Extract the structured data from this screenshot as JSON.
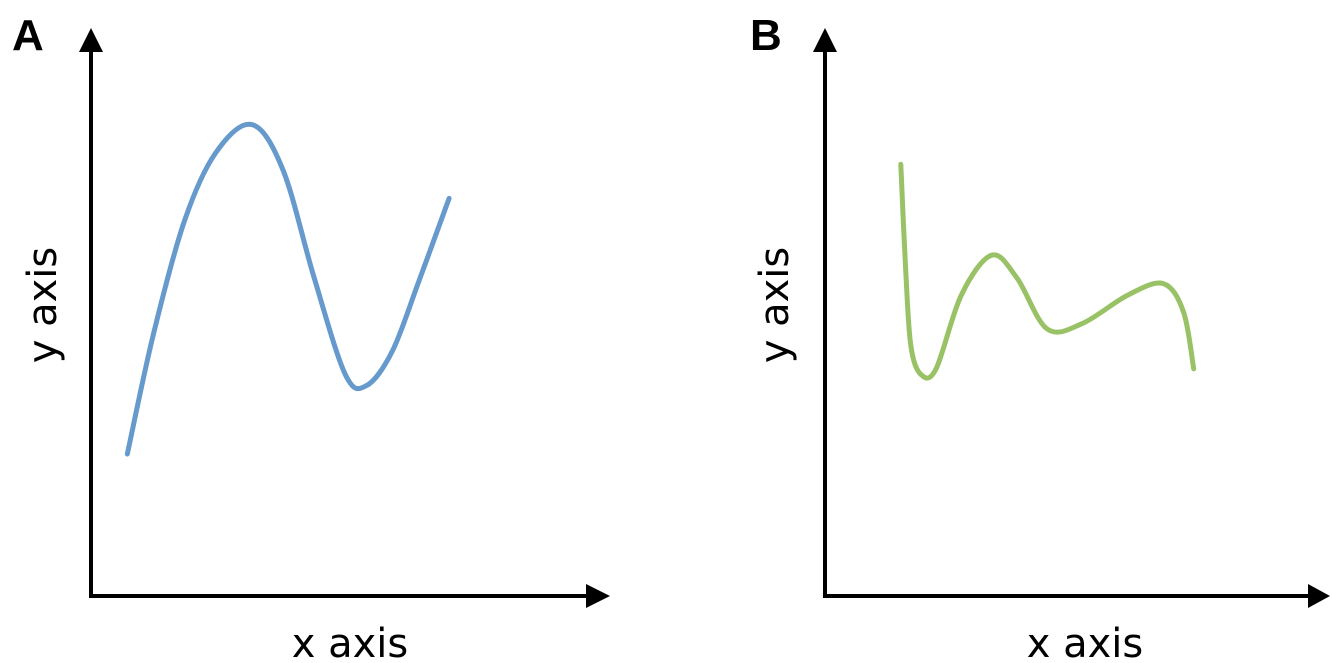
{
  "chart_data": [
    {
      "type": "line",
      "panel_label": "A",
      "xlabel": "x axis",
      "ylabel": "y axis",
      "xlim": [
        0,
        100
      ],
      "ylim": [
        0,
        100
      ],
      "grid": false,
      "series": [
        {
          "color": "#6699cc",
          "points": [
            [
              7,
              25
            ],
            [
              12,
              46
            ],
            [
              18,
              66
            ],
            [
              24,
              78
            ],
            [
              31,
              83
            ],
            [
              37,
              75
            ],
            [
              43,
              56
            ],
            [
              49,
              39
            ],
            [
              53,
              37
            ],
            [
              58,
              43
            ],
            [
              63,
              55
            ],
            [
              69,
              70
            ]
          ]
        }
      ]
    },
    {
      "type": "line",
      "panel_label": "B",
      "xlabel": "x axis",
      "ylabel": "y axis",
      "xlim": [
        0,
        100
      ],
      "ylim": [
        0,
        100
      ],
      "grid": false,
      "series": [
        {
          "color": "#99c266",
          "points": [
            [
              15,
              76
            ],
            [
              16,
              57
            ],
            [
              17,
              44
            ],
            [
              19,
              39
            ],
            [
              22,
              40
            ],
            [
              27,
              53
            ],
            [
              33,
              60
            ],
            [
              38,
              56
            ],
            [
              44,
              47
            ],
            [
              51,
              48
            ],
            [
              60,
              53
            ],
            [
              67,
              55
            ],
            [
              71,
              50
            ],
            [
              73,
              40
            ]
          ]
        }
      ]
    }
  ]
}
